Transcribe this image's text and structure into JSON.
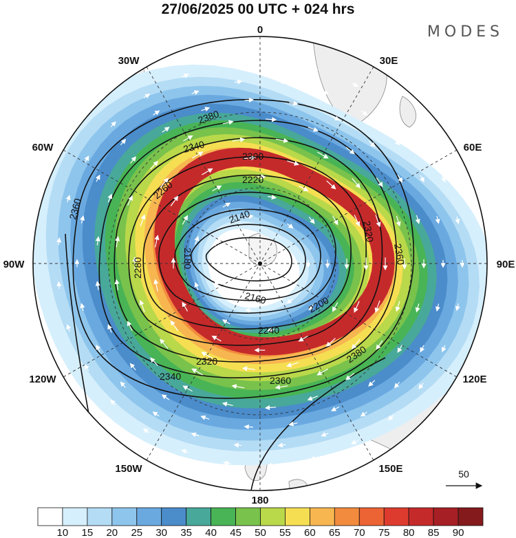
{
  "header": {
    "title": "27/06/2025  00 UTC  + 024 hrs",
    "brand": "MODES"
  },
  "map": {
    "projection": "polar-stereographic-south",
    "longitude_labels": [
      "0",
      "30E",
      "60E",
      "90E",
      "120E",
      "150E",
      "180",
      "150W",
      "120W",
      "90W",
      "60W",
      "30W"
    ],
    "contour_labels": [
      "2380",
      "2340",
      "2300",
      "2260",
      "2220",
      "2180",
      "2140",
      "2160",
      "2200",
      "2240",
      "2280",
      "2320",
      "2360",
      "2380",
      "2340",
      "2320",
      "2360",
      "2360"
    ],
    "wind_reference": {
      "label": "50"
    },
    "colorbar": {
      "ticks": [
        "10",
        "15",
        "20",
        "25",
        "30",
        "35",
        "40",
        "45",
        "50",
        "55",
        "60",
        "65",
        "70",
        "75",
        "80",
        "85",
        "90"
      ],
      "colors": [
        "#ffffff",
        "#d6effc",
        "#b4dcf5",
        "#8ec5ec",
        "#6aa9e0",
        "#4b8ccb",
        "#48a89a",
        "#48b455",
        "#79c24c",
        "#b9d84a",
        "#f5de52",
        "#f7b650",
        "#f28b3d",
        "#ec6334",
        "#dd3b2e",
        "#c52a2b",
        "#a61f24",
        "#841a1c"
      ]
    },
    "isotach_colors": {
      "10": "#d6effc",
      "20": "#b4dcf5",
      "25": "#8ec5ec",
      "30": "#6aa9e0",
      "35": "#4b8ccb",
      "40": "#48a89a",
      "45": "#48b455",
      "50": "#79c24c",
      "55": "#b9d84a",
      "60": "#f5de52",
      "65": "#f7b650",
      "70": "#f28b3d",
      "75": "#ec6334",
      "80": "#dd3b2e",
      "85": "#c52a2b"
    }
  }
}
